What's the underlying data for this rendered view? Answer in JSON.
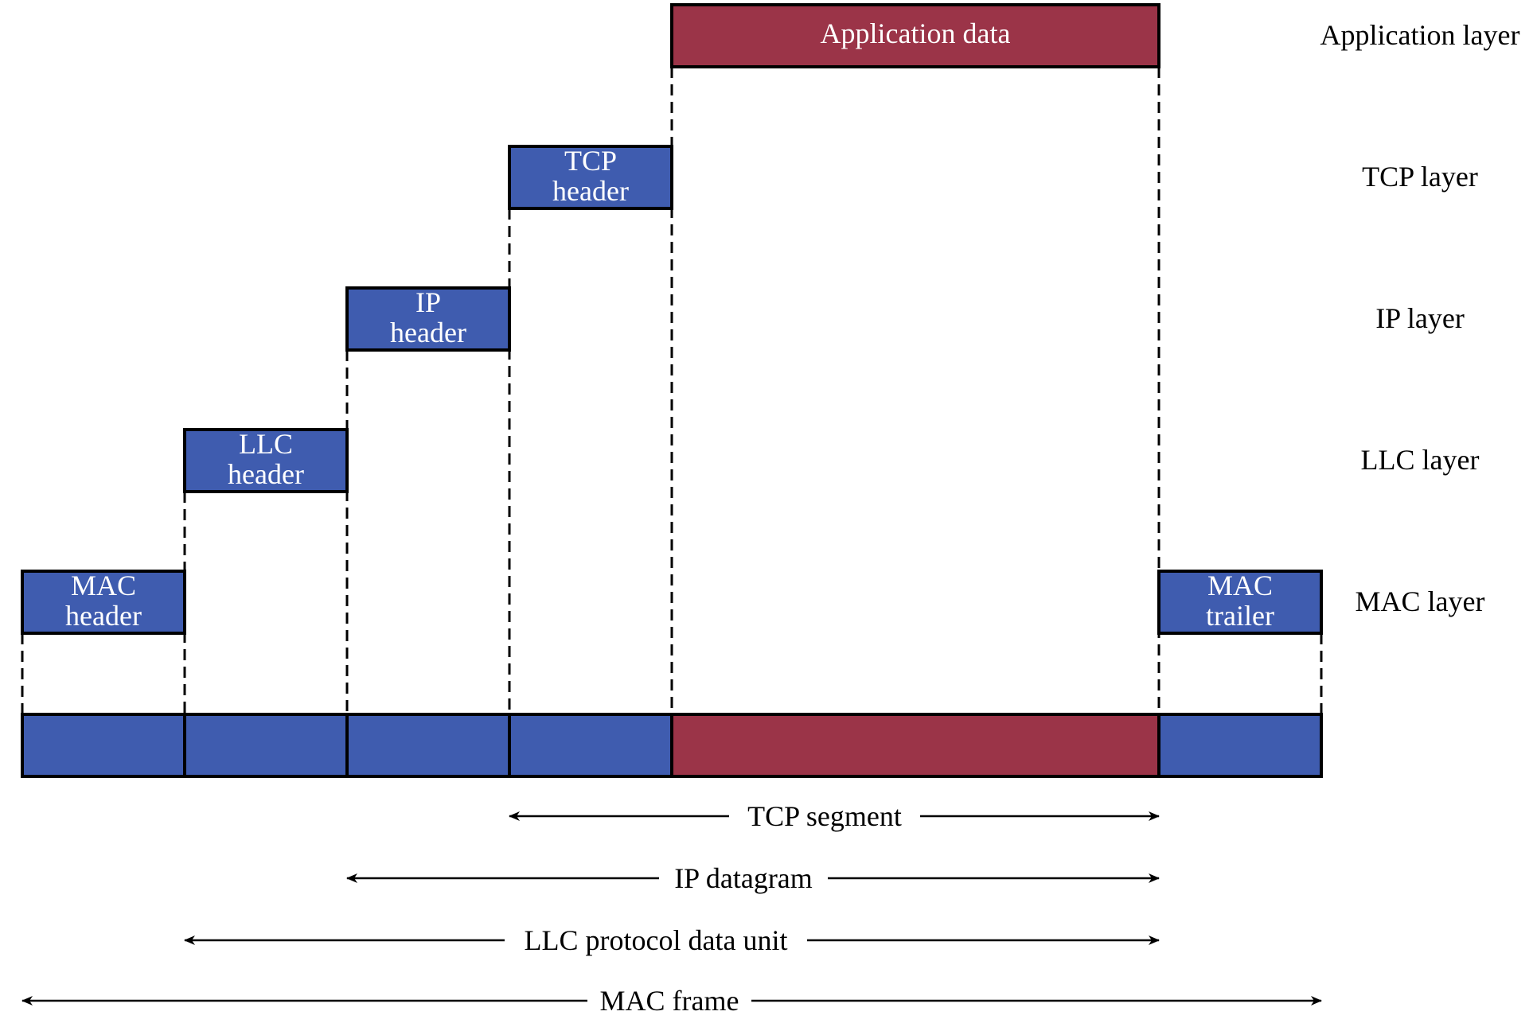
{
  "colors": {
    "blue": "#3f5caf",
    "red": "#9b3448",
    "line": "#000000",
    "background": "#ffffff"
  },
  "blocks": {
    "application_data": "Application data",
    "tcp_header": [
      "TCP",
      "header"
    ],
    "ip_header": [
      "IP",
      "header"
    ],
    "llc_header": [
      "LLC",
      "header"
    ],
    "mac_header": [
      "MAC",
      "header"
    ],
    "mac_trailer": [
      "MAC",
      "trailer"
    ]
  },
  "layers": {
    "application": "Application layer",
    "tcp": "TCP layer",
    "ip": "IP layer",
    "llc": "LLC layer",
    "mac": "MAC layer"
  },
  "spans": {
    "tcp_segment": "TCP segment",
    "ip_datagram": "IP datagram",
    "llc_pdu": "LLC protocol data unit",
    "mac_frame": "MAC frame"
  }
}
